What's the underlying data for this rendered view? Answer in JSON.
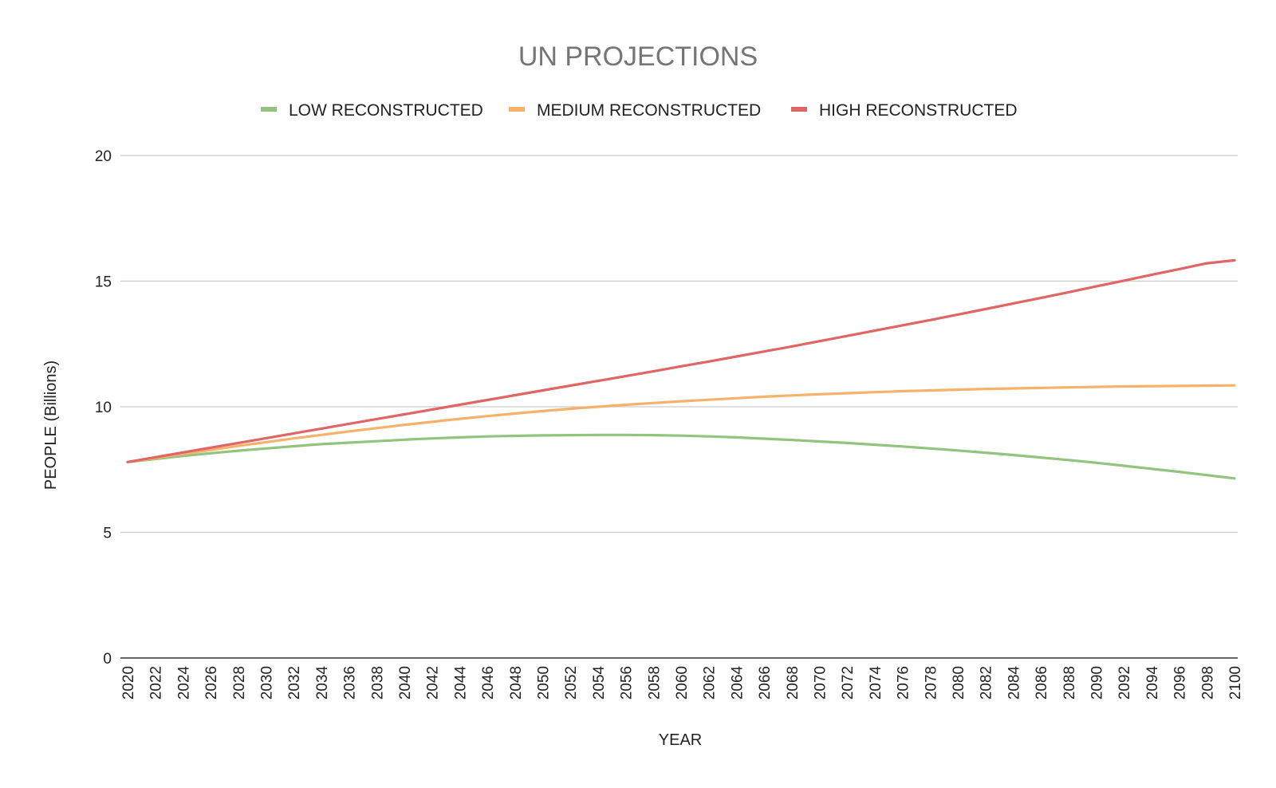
{
  "chart_data": {
    "type": "line",
    "title": "UN PROJECTIONS",
    "xlabel": "YEAR",
    "ylabel": "PEOPLE (Billions)",
    "ylim": [
      0,
      20
    ],
    "yticks": [
      0,
      5,
      10,
      15,
      20
    ],
    "grid": true,
    "legend_position": "top",
    "x": [
      2020,
      2022,
      2024,
      2026,
      2028,
      2030,
      2032,
      2034,
      2036,
      2038,
      2040,
      2042,
      2044,
      2046,
      2048,
      2050,
      2052,
      2054,
      2056,
      2058,
      2060,
      2062,
      2064,
      2066,
      2068,
      2070,
      2072,
      2074,
      2076,
      2078,
      2080,
      2082,
      2084,
      2086,
      2088,
      2090,
      2092,
      2094,
      2096,
      2098,
      2100
    ],
    "series": [
      {
        "name": "LOW RECONSTRUCTED",
        "color": "#93c47d",
        "values": [
          7.8,
          7.92,
          8.04,
          8.15,
          8.25,
          8.34,
          8.43,
          8.51,
          8.57,
          8.63,
          8.69,
          8.74,
          8.78,
          8.82,
          8.84,
          8.86,
          8.87,
          8.88,
          8.88,
          8.87,
          8.85,
          8.82,
          8.78,
          8.73,
          8.68,
          8.62,
          8.56,
          8.49,
          8.42,
          8.34,
          8.26,
          8.17,
          8.08,
          7.98,
          7.88,
          7.77,
          7.65,
          7.53,
          7.41,
          7.28,
          7.15
        ]
      },
      {
        "name": "MEDIUM  RECONSTRUCTED",
        "color": "#f6b26b",
        "values": [
          7.8,
          7.96,
          8.12,
          8.28,
          8.44,
          8.59,
          8.74,
          8.88,
          9.02,
          9.15,
          9.28,
          9.4,
          9.52,
          9.63,
          9.73,
          9.83,
          9.92,
          10.0,
          10.08,
          10.15,
          10.22,
          10.28,
          10.34,
          10.4,
          10.45,
          10.5,
          10.54,
          10.58,
          10.62,
          10.65,
          10.68,
          10.71,
          10.73,
          10.75,
          10.77,
          10.79,
          10.81,
          10.82,
          10.83,
          10.84,
          10.85
        ]
      },
      {
        "name": "HIGH RECONSTRUCTED",
        "color": "#e06666",
        "values": [
          7.8,
          7.99,
          8.18,
          8.37,
          8.56,
          8.75,
          8.94,
          9.13,
          9.32,
          9.51,
          9.7,
          9.89,
          10.08,
          10.27,
          10.46,
          10.65,
          10.84,
          11.03,
          11.22,
          11.41,
          11.61,
          11.8,
          12.0,
          12.2,
          12.4,
          12.61,
          12.82,
          13.03,
          13.24,
          13.45,
          13.67,
          13.89,
          14.11,
          14.33,
          14.56,
          14.79,
          15.02,
          15.25,
          15.48,
          15.71,
          15.83
        ]
      }
    ]
  }
}
